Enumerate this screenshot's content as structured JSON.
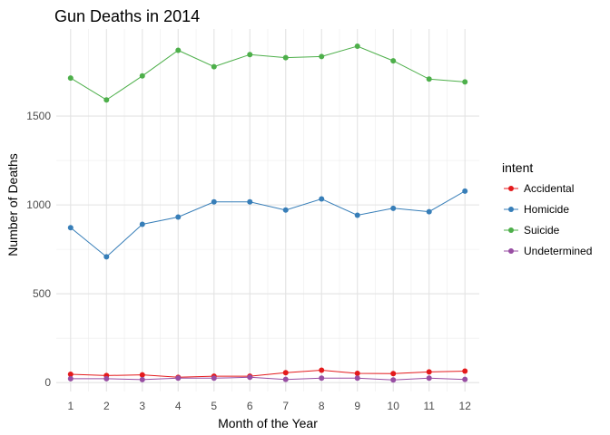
{
  "chart_data": {
    "type": "line",
    "title": "Gun Deaths in 2014",
    "xlabel": "Month of the Year",
    "ylabel": "Number of Deaths",
    "x": [
      1,
      2,
      3,
      4,
      5,
      6,
      7,
      8,
      9,
      10,
      11,
      12
    ],
    "x_tick_labels": [
      "1",
      "2",
      "3",
      "4",
      "5",
      "6",
      "7",
      "8",
      "9",
      "10",
      "11",
      "12"
    ],
    "xlim": [
      0.6,
      12.4
    ],
    "ylim": [
      -50,
      1990
    ],
    "y_ticks": [
      0,
      500,
      1000,
      1500
    ],
    "y_tick_labels": [
      "0",
      "500",
      "1000",
      "1500"
    ],
    "grid": true,
    "legend_title": "intent",
    "legend_position": "right",
    "series": [
      {
        "name": "Accidental",
        "color": "#e41a1c",
        "values": [
          47,
          40,
          44,
          30,
          36,
          36,
          56,
          70,
          52,
          51,
          60,
          65
        ]
      },
      {
        "name": "Homicide",
        "color": "#377eb8",
        "values": [
          872,
          708,
          891,
          932,
          1017,
          1017,
          971,
          1034,
          942,
          981,
          962,
          1078
        ]
      },
      {
        "name": "Suicide",
        "color": "#4daf4a",
        "values": [
          1714,
          1591,
          1726,
          1870,
          1778,
          1846,
          1829,
          1835,
          1893,
          1811,
          1708,
          1692
        ]
      },
      {
        "name": "Undetermined",
        "color": "#984ea3",
        "values": [
          22,
          22,
          17,
          25,
          25,
          30,
          18,
          25,
          25,
          15,
          25,
          18
        ]
      }
    ]
  }
}
